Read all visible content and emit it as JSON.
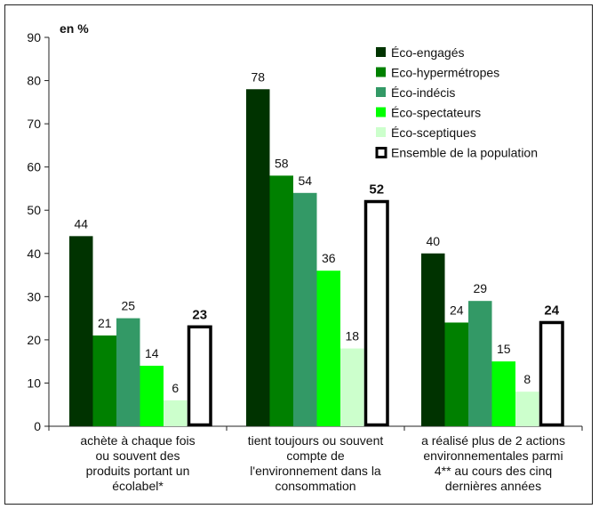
{
  "chart_data": {
    "type": "bar",
    "unit_label": "en %",
    "ylim": [
      0,
      90
    ],
    "y_ticks": [
      0,
      10,
      20,
      30,
      40,
      50,
      60,
      70,
      80,
      90
    ],
    "grid": false,
    "legend_position": "top-right",
    "categories": [
      [
        "achète à chaque fois",
        "ou souvent des",
        "produits portant un",
        "écolabel*"
      ],
      [
        "tient toujours ou souvent",
        "compte de",
        "l'environnement dans la",
        "consommation"
      ],
      [
        "a réalisé plus de 2 actions",
        "environnementales parmi",
        "4** au cours des cinq",
        "dernières années"
      ]
    ],
    "series": [
      {
        "name": "Éco-engagés",
        "color": "#003300",
        "values": [
          44,
          78,
          40
        ]
      },
      {
        "name": "Eco-hypermétropes",
        "color": "#008000",
        "values": [
          21,
          58,
          24
        ]
      },
      {
        "name": "Éco-indécis",
        "color": "#339966",
        "values": [
          25,
          54,
          29
        ]
      },
      {
        "name": "Éco-spectateurs",
        "color": "#00ff00",
        "values": [
          14,
          36,
          15
        ]
      },
      {
        "name": "Éco-sceptiques",
        "color": "#ccffcc",
        "values": [
          6,
          18,
          8
        ]
      },
      {
        "name": "Ensemble de la population",
        "color": "#ffffff",
        "outline": "#000000",
        "values": [
          23,
          52,
          24
        ],
        "bold_labels": true
      }
    ]
  }
}
